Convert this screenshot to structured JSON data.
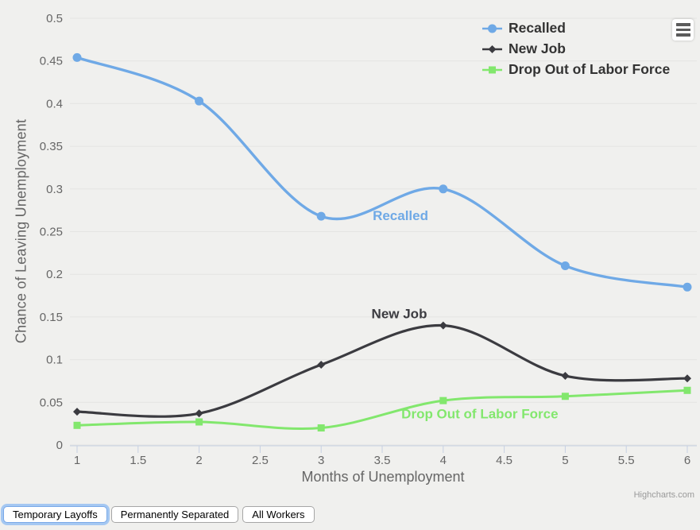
{
  "colors": {
    "background": "#f0f0ee",
    "grid": "#e4e4e2",
    "axis": "#c6d0e2",
    "tick_label": "#666666",
    "axis_title": "#666666",
    "legend_text": "#333333",
    "credits": "#999999",
    "focus_ring": "#a5c8f2"
  },
  "chart_data": {
    "type": "line",
    "title": "",
    "xlabel": "Months of Unemployment",
    "ylabel": "Chance of Leaving Unemployment",
    "xlim": [
      1,
      6
    ],
    "ylim": [
      0,
      0.5
    ],
    "grid": true,
    "legend_position": "top-right",
    "x_ticks": [
      1,
      1.5,
      2,
      2.5,
      3,
      3.5,
      4,
      4.5,
      5,
      5.5,
      6
    ],
    "x_tick_labels": [
      "1",
      "1.5",
      "2",
      "2.5",
      "3",
      "3.5",
      "4",
      "4.5",
      "5",
      "5.5",
      "6"
    ],
    "y_ticks": [
      0,
      0.05,
      0.1,
      0.15,
      0.2,
      0.25,
      0.3,
      0.35,
      0.4,
      0.45,
      0.5
    ],
    "y_tick_labels": [
      "0",
      "0.05",
      "0.1",
      "0.15",
      "0.2",
      "0.25",
      "0.3",
      "0.35",
      "0.4",
      "0.45",
      "0.5"
    ],
    "series": [
      {
        "name": "Recalled",
        "color": "#6fa9e6",
        "marker": "circle",
        "line_width": 3.4,
        "x": [
          1,
          2,
          3,
          4,
          5,
          6
        ],
        "values": [
          0.454,
          0.403,
          0.268,
          0.3,
          0.21,
          0.185
        ],
        "inline_label": {
          "text": "Recalled",
          "x": 3.65,
          "y": 0.269
        }
      },
      {
        "name": "New Job",
        "color": "#3b3b40",
        "marker": "diamond",
        "line_width": 3.2,
        "x": [
          1,
          2,
          3,
          4,
          5,
          6
        ],
        "values": [
          0.039,
          0.037,
          0.094,
          0.14,
          0.081,
          0.078
        ],
        "inline_label": {
          "text": "New Job",
          "x": 3.64,
          "y": 0.154
        }
      },
      {
        "name": "Drop Out of Labor Force",
        "color": "#82e76d",
        "marker": "square",
        "line_width": 3.0,
        "x": [
          1,
          2,
          3,
          4,
          5,
          6
        ],
        "values": [
          0.023,
          0.027,
          0.02,
          0.052,
          0.057,
          0.064
        ],
        "inline_label": {
          "text": "Drop Out of Labor Force",
          "x": 4.3,
          "y": 0.037
        }
      }
    ],
    "credits": "Highcharts.com"
  },
  "icons": {
    "menu": "hamburger-icon"
  },
  "buttons": [
    {
      "label": "Temporary Layoffs",
      "active": true
    },
    {
      "label": "Permanently Separated",
      "active": false
    },
    {
      "label": "All Workers",
      "active": false
    }
  ]
}
